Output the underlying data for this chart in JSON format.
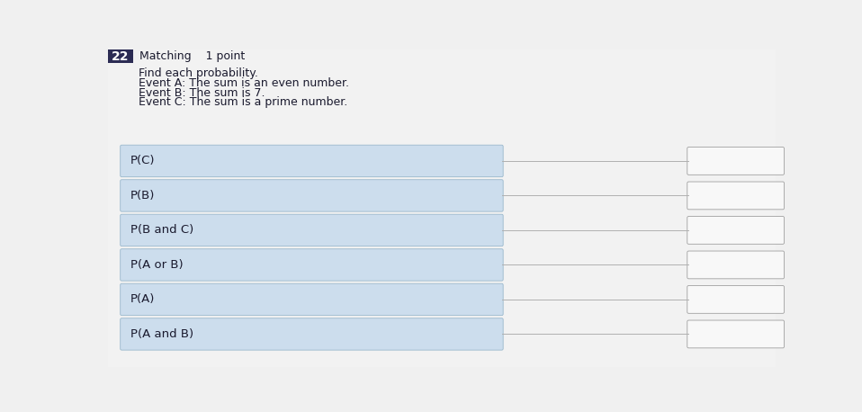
{
  "question_number": "22",
  "question_type": "Matching",
  "points": "1 point",
  "instructions": "Find each probability.",
  "events": [
    "Event A: The sum is an even number.",
    "Event B: The sum is 7.",
    "Event C: The sum is a prime number."
  ],
  "left_items": [
    "P(C)",
    "P(B)",
    "P(B and C)",
    "P(A or B)",
    "P(A)",
    "P(A and B)"
  ],
  "background_color": "#f0f0f0",
  "page_bg": "#e8e8e8",
  "left_box_color": "#ccdded",
  "left_box_border": "#9ab8cc",
  "right_box_color": "#f8f8f8",
  "right_box_border": "#a0a0a0",
  "header_bg": "#2c2c54",
  "header_text": "#ffffff",
  "text_color": "#1a1a2e",
  "line_color": "#b0b0b0",
  "item_fontsize": 9.5,
  "header_fontsize": 9,
  "text_fontsize": 9
}
